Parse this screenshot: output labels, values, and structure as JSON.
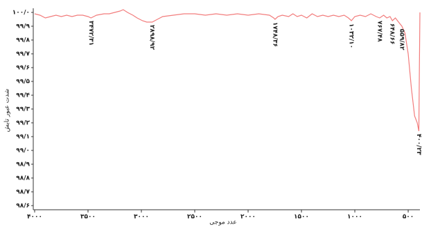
{
  "chart_data": {
    "type": "line",
    "xlabel": "عدد موجی",
    "ylabel": "شدت عبور تابش",
    "color": "#f27c7c",
    "x": [
      4000,
      3950,
      3900,
      3850,
      3800,
      3750,
      3700,
      3650,
      3600,
      3550,
      3500,
      3472,
      3420,
      3350,
      3300,
      3250,
      3200,
      3170,
      3130,
      3080,
      3040,
      2990,
      2950,
      2898,
      2850,
      2800,
      2700,
      2600,
      2500,
      2400,
      2300,
      2200,
      2100,
      2000,
      1900,
      1800,
      1760,
      1748,
      1720,
      1680,
      1620,
      1580,
      1540,
      1500,
      1450,
      1400,
      1350,
      1300,
      1250,
      1200,
      1150,
      1100,
      1060,
      1032,
      1000,
      950,
      900,
      850,
      800,
      767,
      730,
      700,
      670,
      648,
      620,
      590,
      559,
      530,
      500,
      470,
      440,
      415,
      400,
      395,
      390
    ],
    "values": [
      99.99,
      99.98,
      99.96,
      99.97,
      99.98,
      99.97,
      99.98,
      99.97,
      99.98,
      99.98,
      99.97,
      99.96,
      99.98,
      99.99,
      99.99,
      100.0,
      100.01,
      100.02,
      100.0,
      99.98,
      99.96,
      99.94,
      99.93,
      99.93,
      99.95,
      99.97,
      99.98,
      99.99,
      99.99,
      99.98,
      99.99,
      99.98,
      99.99,
      99.98,
      99.99,
      99.98,
      99.96,
      99.95,
      99.97,
      99.98,
      99.97,
      99.99,
      99.97,
      99.98,
      99.96,
      99.99,
      99.97,
      99.98,
      99.97,
      99.98,
      99.97,
      99.98,
      99.96,
      99.94,
      99.97,
      99.98,
      99.97,
      99.99,
      99.97,
      99.96,
      99.98,
      99.96,
      99.97,
      99.94,
      99.96,
      99.93,
      99.9,
      99.85,
      99.7,
      99.45,
      99.25,
      99.2,
      99.14,
      99.6,
      100.0
    ],
    "xlim": [
      4000,
      390
    ],
    "ylim": [
      98.58,
      100.03
    ],
    "xticks": [
      {
        "value": 4000,
        "label": "۴۰۰۰"
      },
      {
        "value": 3500,
        "label": "۳۵۰۰"
      },
      {
        "value": 3000,
        "label": "۳۰۰۰"
      },
      {
        "value": 2500,
        "label": "۲۵۰۰"
      },
      {
        "value": 2000,
        "label": "۲۰۰۰"
      },
      {
        "value": 1500,
        "label": "۱۵۰۰"
      },
      {
        "value": 1000,
        "label": "۱۰۰۰"
      },
      {
        "value": 500,
        "label": "۵۰۰"
      }
    ],
    "yticks": [
      {
        "value": 100.0,
        "label": "۱۰۰/۰"
      },
      {
        "value": 99.9,
        "label": "۹۹/۹"
      },
      {
        "value": 99.8,
        "label": "۹۹/۸"
      },
      {
        "value": 99.7,
        "label": "۹۹/۷"
      },
      {
        "value": 99.6,
        "label": "۹۹/۶"
      },
      {
        "value": 99.5,
        "label": "۹۹/۵"
      },
      {
        "value": 99.4,
        "label": "۹۹/۴"
      },
      {
        "value": 99.3,
        "label": "۹۹/۳"
      },
      {
        "value": 99.2,
        "label": "۹۹/۲"
      },
      {
        "value": 99.1,
        "label": "۹۹/۱"
      },
      {
        "value": 99.0,
        "label": "۹۹/۰"
      },
      {
        "value": 98.9,
        "label": "۹۸/۹"
      },
      {
        "value": 98.8,
        "label": "۹۸/۸"
      },
      {
        "value": 98.7,
        "label": "۹۸/۷"
      },
      {
        "value": 98.6,
        "label": "۹۸/۶"
      }
    ],
    "annotations": [
      {
        "value": 3472.31,
        "label": "۳۴۷۲/۳۱"
      },
      {
        "value": 2898.92,
        "label": "۲۸۹۸/۹۲"
      },
      {
        "value": 1748.36,
        "label": "۱۷۴۸/۳۶"
      },
      {
        "value": 1032.1,
        "label": "۱۰۳۲/۱۰"
      },
      {
        "value": 767.48,
        "label": "۷۶۷/۴۸"
      },
      {
        "value": 648.66,
        "label": "۶۴۸/۶۶"
      },
      {
        "value": 559.82,
        "label": "۵۵۹/۸۲"
      },
      {
        "value": 400.23,
        "label": "۴۰۰/۲۳"
      }
    ]
  }
}
